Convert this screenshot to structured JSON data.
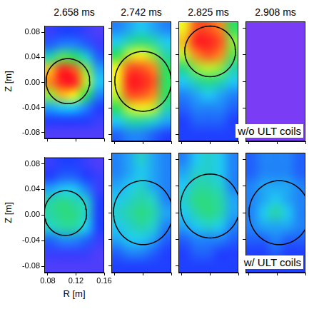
{
  "chart_data": [
    {
      "type": "heatmap",
      "title": "2.658 ms",
      "ylabel": "Z [m]",
      "tick_labels": "y",
      "xlim": [
        0.075,
        0.16
      ],
      "ylim": [
        -0.09,
        0.09
      ],
      "xticks": [
        0.08,
        0.12,
        0.16
      ],
      "yticks": [
        -0.08,
        -0.04,
        {
          "value": 0,
          "label": "0.00"
        },
        0.04,
        0.08
      ],
      "r_edges": [
        0.075,
        0.092,
        0.109,
        0.126,
        0.143,
        0.16
      ],
      "z_edges": [
        -0.09,
        -0.07,
        -0.05,
        -0.03,
        -0.01,
        0.01,
        0.03,
        0.05,
        0.07,
        0.09
      ],
      "zlim": [
        0,
        1
      ],
      "cells": [
        [
          0.1,
          0.1,
          0.1,
          0.1,
          0.1
        ],
        [
          0.2,
          0.2,
          0.2,
          0.2,
          0.15
        ],
        [
          0.35,
          0.4,
          0.4,
          0.3,
          0.2
        ],
        [
          0.7,
          0.85,
          0.8,
          0.6,
          0.3
        ],
        [
          0.9,
          1,
          1,
          0.75,
          0.4
        ],
        [
          0.85,
          1,
          0.95,
          0.7,
          0.35
        ],
        [
          0.5,
          0.65,
          0.6,
          0.45,
          0.25
        ],
        [
          0.25,
          0.3,
          0.3,
          0.25,
          0.15
        ],
        [
          0.15,
          0.2,
          0.2,
          0.15,
          0.1
        ]
      ],
      "ellipse": {
        "center": [
          0.1085,
          0.002
        ],
        "radii": [
          0.031,
          0.036
        ]
      }
    },
    {
      "type": "heatmap",
      "title": "2.742 ms",
      "tick_labels": false,
      "xlim": [
        0.075,
        0.16
      ],
      "ylim": [
        -0.09,
        0.09
      ],
      "xticks": [
        0.08,
        0.12,
        0.16
      ],
      "yticks": [
        -0.08,
        -0.04,
        {
          "value": 0,
          "label": "0.00"
        },
        0.04,
        0.08
      ],
      "r_edges": [
        0.075,
        0.092,
        0.109,
        0.126,
        0.143,
        0.16
      ],
      "z_edges": [
        -0.09,
        -0.07,
        -0.05,
        -0.03,
        -0.01,
        0.01,
        0.03,
        0.05,
        0.07,
        0.09
      ],
      "zlim": [
        0,
        1
      ],
      "cells": [
        [
          0.25,
          0.3,
          0.3,
          0.25,
          0.2
        ],
        [
          0.4,
          0.5,
          0.5,
          0.45,
          0.35
        ],
        [
          0.6,
          0.75,
          0.8,
          0.75,
          0.5
        ],
        [
          0.75,
          0.95,
          0.95,
          0.9,
          0.6
        ],
        [
          0.8,
          1,
          1,
          0.95,
          0.6
        ],
        [
          0.8,
          0.95,
          0.95,
          0.9,
          0.6
        ],
        [
          0.6,
          0.75,
          0.8,
          0.7,
          0.5
        ],
        [
          0.4,
          0.5,
          0.55,
          0.5,
          0.4
        ],
        [
          0.3,
          0.35,
          0.4,
          0.35,
          0.3
        ]
      ],
      "ellipse": {
        "center": [
          0.12,
          0.0
        ],
        "radii": [
          0.04,
          0.045
        ]
      }
    },
    {
      "type": "heatmap",
      "title": "2.825 ms",
      "tick_labels": false,
      "xlim": [
        0.075,
        0.16
      ],
      "ylim": [
        -0.09,
        0.09
      ],
      "xticks": [
        0.08,
        0.12,
        0.16
      ],
      "yticks": [
        -0.08,
        -0.04,
        {
          "value": 0,
          "label": "0.00"
        },
        0.04,
        0.08
      ],
      "r_edges": [
        0.075,
        0.092,
        0.109,
        0.126,
        0.143,
        0.16
      ],
      "z_edges": [
        -0.09,
        -0.07,
        -0.05,
        -0.03,
        -0.01,
        0.01,
        0.03,
        0.05,
        0.07,
        0.09
      ],
      "zlim": [
        0,
        1
      ],
      "cells": [
        [
          0.2,
          0.2,
          0.2,
          0.2,
          0.2
        ],
        [
          0.2,
          0.25,
          0.25,
          0.25,
          0.2
        ],
        [
          0.25,
          0.3,
          0.3,
          0.3,
          0.25
        ],
        [
          0.3,
          0.35,
          0.4,
          0.35,
          0.3
        ],
        [
          0.4,
          0.5,
          0.55,
          0.5,
          0.4
        ],
        [
          0.55,
          0.7,
          0.75,
          0.7,
          0.5
        ],
        [
          0.75,
          0.9,
          0.95,
          0.9,
          0.65
        ],
        [
          0.85,
          1,
          1,
          0.95,
          0.7
        ],
        [
          0.8,
          0.95,
          0.95,
          0.9,
          0.6
        ]
      ],
      "ellipse": {
        "center": [
          0.12,
          0.045
        ],
        "radii": [
          0.036,
          0.038
        ]
      }
    },
    {
      "type": "heatmap",
      "title": "2.908 ms",
      "annotation": "w/o ULT coils",
      "tick_labels": false,
      "xlim": [
        0.075,
        0.16
      ],
      "ylim": [
        -0.09,
        0.09
      ],
      "xticks": [
        0.08,
        0.12,
        0.16
      ],
      "yticks": [
        -0.08,
        -0.04,
        {
          "value": 0,
          "label": "0.00"
        },
        0.04,
        0.08
      ],
      "r_edges": [
        0.075,
        0.092,
        0.109,
        0.126,
        0.143,
        0.16
      ],
      "z_edges": [
        -0.09,
        -0.07,
        -0.05,
        -0.03,
        -0.01,
        0.01,
        0.03,
        0.05,
        0.07,
        0.09
      ],
      "zlim": [
        0,
        1
      ],
      "cells": [
        [
          0,
          0,
          0,
          0,
          0
        ],
        [
          0,
          0,
          0,
          0,
          0
        ],
        [
          0,
          0,
          0,
          0,
          0
        ],
        [
          0,
          0,
          0,
          0,
          0
        ],
        [
          0,
          0,
          0,
          0,
          0
        ],
        [
          0,
          0,
          0,
          0,
          0
        ],
        [
          0,
          0,
          0,
          0,
          0
        ],
        [
          0,
          0,
          0,
          0,
          0
        ],
        [
          0,
          0,
          0,
          0,
          0
        ]
      ]
    },
    {
      "type": "heatmap",
      "ylabel": "Z [m]",
      "xlabel": "R [m]",
      "xlim": [
        0.075,
        0.16
      ],
      "ylim": [
        -0.09,
        0.09
      ],
      "xticks": [
        0.08,
        0.12,
        0.16
      ],
      "yticks": [
        -0.08,
        -0.04,
        {
          "value": 0,
          "label": "0.00"
        },
        0.04,
        0.08
      ],
      "r_edges": [
        0.075,
        0.092,
        0.109,
        0.126,
        0.143,
        0.16
      ],
      "z_edges": [
        -0.09,
        -0.07,
        -0.05,
        -0.03,
        -0.01,
        0.01,
        0.03,
        0.05,
        0.07,
        0.09
      ],
      "zlim": [
        0,
        1
      ],
      "cells": [
        [
          0.1,
          0.1,
          0.1,
          0.1,
          0.1
        ],
        [
          0.15,
          0.15,
          0.15,
          0.15,
          0.1
        ],
        [
          0.25,
          0.3,
          0.3,
          0.25,
          0.15
        ],
        [
          0.45,
          0.5,
          0.5,
          0.4,
          0.2
        ],
        [
          0.5,
          0.55,
          0.55,
          0.45,
          0.2
        ],
        [
          0.5,
          0.55,
          0.5,
          0.45,
          0.2
        ],
        [
          0.35,
          0.4,
          0.4,
          0.3,
          0.15
        ],
        [
          0.2,
          0.25,
          0.25,
          0.2,
          0.15
        ],
        [
          0.15,
          0.2,
          0.2,
          0.15,
          0.1
        ]
      ],
      "ellipse": {
        "center": [
          0.105,
          0.003
        ],
        "radii": [
          0.03,
          0.035
        ]
      }
    },
    {
      "type": "heatmap",
      "tick_labels": false,
      "xlim": [
        0.075,
        0.16
      ],
      "ylim": [
        -0.09,
        0.09
      ],
      "xticks": [
        0.08,
        0.12,
        0.16
      ],
      "yticks": [
        -0.08,
        -0.04,
        {
          "value": 0,
          "label": "0.00"
        },
        0.04,
        0.08
      ],
      "r_edges": [
        0.075,
        0.092,
        0.109,
        0.126,
        0.143,
        0.16
      ],
      "z_edges": [
        -0.09,
        -0.07,
        -0.05,
        -0.03,
        -0.01,
        0.01,
        0.03,
        0.05,
        0.07,
        0.09
      ],
      "zlim": [
        0,
        1
      ],
      "cells": [
        [
          0.2,
          0.2,
          0.2,
          0.2,
          0.2
        ],
        [
          0.25,
          0.3,
          0.3,
          0.25,
          0.2
        ],
        [
          0.35,
          0.4,
          0.4,
          0.35,
          0.25
        ],
        [
          0.4,
          0.45,
          0.5,
          0.45,
          0.3
        ],
        [
          0.45,
          0.5,
          0.55,
          0.5,
          0.35
        ],
        [
          0.4,
          0.45,
          0.5,
          0.45,
          0.3
        ],
        [
          0.35,
          0.4,
          0.45,
          0.35,
          0.3
        ],
        [
          0.3,
          0.35,
          0.4,
          0.35,
          0.3
        ],
        [
          0.3,
          0.35,
          0.45,
          0.35,
          0.3
        ]
      ],
      "ellipse": {
        "center": [
          0.12,
          0.0
        ],
        "radii": [
          0.042,
          0.048
        ]
      }
    },
    {
      "type": "heatmap",
      "tick_labels": false,
      "xlim": [
        0.075,
        0.16
      ],
      "ylim": [
        -0.09,
        0.09
      ],
      "xticks": [
        0.08,
        0.12,
        0.16
      ],
      "yticks": [
        -0.08,
        -0.04,
        {
          "value": 0,
          "label": "0.00"
        },
        0.04,
        0.08
      ],
      "r_edges": [
        0.075,
        0.092,
        0.109,
        0.126,
        0.143,
        0.16
      ],
      "z_edges": [
        -0.09,
        -0.07,
        -0.05,
        -0.03,
        -0.01,
        0.01,
        0.03,
        0.05,
        0.07,
        0.09
      ],
      "zlim": [
        0,
        1
      ],
      "cells": [
        [
          0.2,
          0.2,
          0.2,
          0.2,
          0.2
        ],
        [
          0.2,
          0.25,
          0.25,
          0.2,
          0.2
        ],
        [
          0.25,
          0.3,
          0.3,
          0.3,
          0.25
        ],
        [
          0.35,
          0.4,
          0.45,
          0.4,
          0.3
        ],
        [
          0.4,
          0.5,
          0.55,
          0.5,
          0.35
        ],
        [
          0.45,
          0.55,
          0.55,
          0.5,
          0.35
        ],
        [
          0.4,
          0.5,
          0.5,
          0.45,
          0.3
        ],
        [
          0.35,
          0.45,
          0.45,
          0.4,
          0.3
        ],
        [
          0.3,
          0.4,
          0.45,
          0.4,
          0.3
        ]
      ],
      "ellipse": {
        "center": [
          0.12,
          0.01
        ],
        "radii": [
          0.042,
          0.048
        ]
      }
    },
    {
      "type": "heatmap",
      "annotation": "w/ ULT coils",
      "tick_labels": false,
      "xlim": [
        0.075,
        0.16
      ],
      "ylim": [
        -0.09,
        0.09
      ],
      "xticks": [
        0.08,
        0.12,
        0.16
      ],
      "yticks": [
        -0.08,
        -0.04,
        {
          "value": 0,
          "label": "0.00"
        },
        0.04,
        0.08
      ],
      "r_edges": [
        0.075,
        0.092,
        0.109,
        0.126,
        0.143,
        0.16
      ],
      "z_edges": [
        -0.09,
        -0.07,
        -0.05,
        -0.03,
        -0.01,
        0.01,
        0.03,
        0.05,
        0.07,
        0.09
      ],
      "zlim": [
        0,
        1
      ],
      "cells": [
        [
          0.2,
          0.2,
          0.2,
          0.2,
          0.2
        ],
        [
          0.2,
          0.2,
          0.25,
          0.2,
          0.2
        ],
        [
          0.25,
          0.25,
          0.3,
          0.25,
          0.25
        ],
        [
          0.3,
          0.35,
          0.35,
          0.35,
          0.3
        ],
        [
          0.3,
          0.4,
          0.5,
          0.4,
          0.3
        ],
        [
          0.3,
          0.35,
          0.4,
          0.35,
          0.3
        ],
        [
          0.3,
          0.35,
          0.35,
          0.35,
          0.3
        ],
        [
          0.25,
          0.3,
          0.3,
          0.3,
          0.25
        ],
        [
          0.25,
          0.3,
          0.3,
          0.3,
          0.25
        ]
      ],
      "ellipse": {
        "center": [
          0.123,
          0.0
        ],
        "radii": [
          0.043,
          0.048
        ]
      }
    }
  ]
}
